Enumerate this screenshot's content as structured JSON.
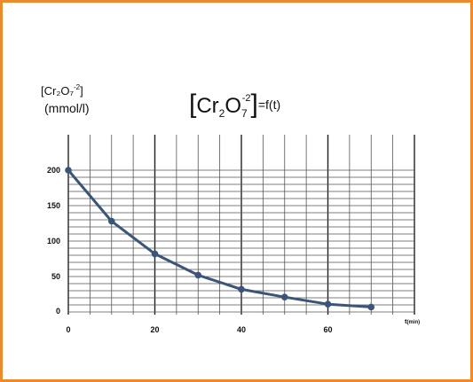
{
  "colors": {
    "border": "#ec8a2c",
    "grid_minor": "#555555",
    "grid_major": "#222222",
    "series": "#3b5579"
  },
  "chart_data": {
    "type": "line",
    "title": {
      "open": "[",
      "chem_main": "Cr",
      "sub1": "2",
      "chem_o": "O",
      "sub2": "7",
      "sup": "-2",
      "close": "]",
      "suffix": "=f(t)"
    },
    "ylabel": {
      "open": "[",
      "chem": "Cr₂O₇",
      "sup": "-2",
      "close": "]",
      "unit": "(mmol/l)"
    },
    "xlabel": {
      "main": "t",
      "unit": "(min)"
    },
    "xlim": [
      0,
      80
    ],
    "ylim": [
      0,
      240
    ],
    "x_ticks": [
      "0",
      "20",
      "40",
      "60"
    ],
    "y_ticks": [
      "0",
      "50",
      "100",
      "150",
      "200"
    ],
    "grid": true,
    "x": [
      0,
      10,
      20,
      30,
      40,
      50,
      60,
      70
    ],
    "y": [
      200,
      128,
      82,
      52,
      32,
      21,
      11,
      7
    ]
  }
}
